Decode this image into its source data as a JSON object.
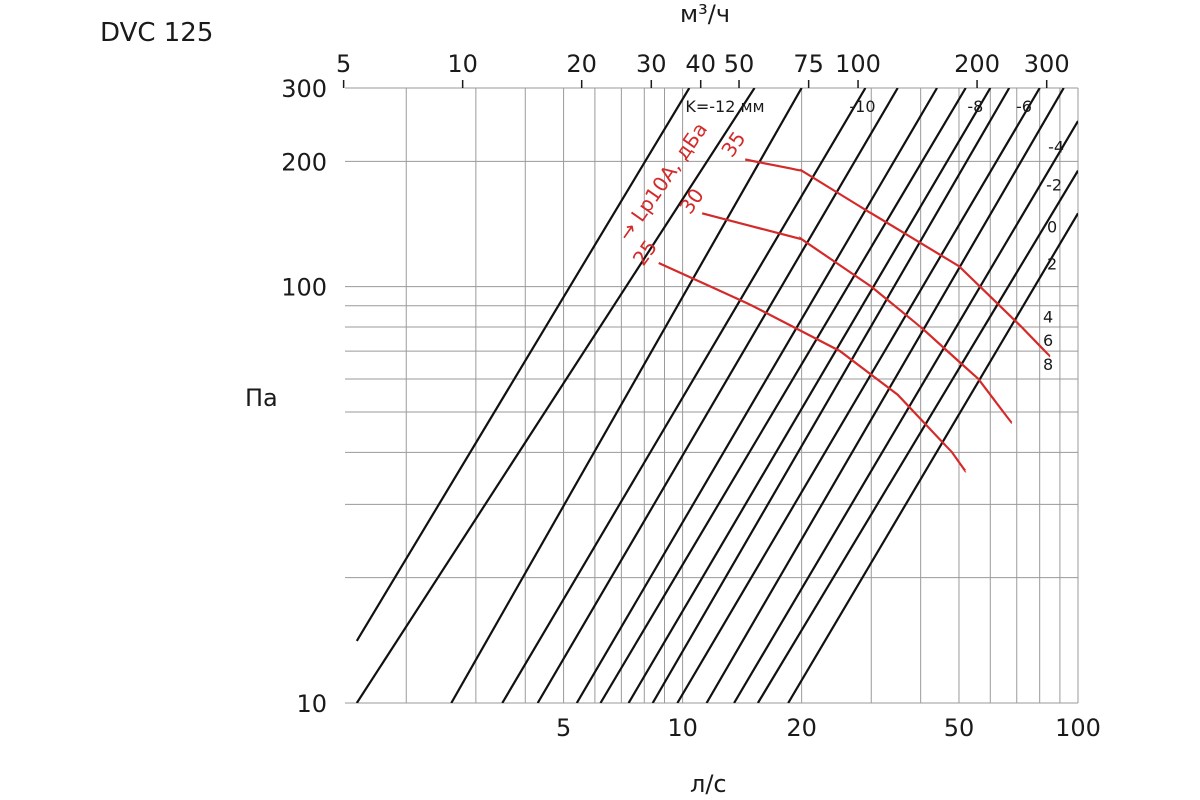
{
  "chart_data": {
    "type": "line",
    "title": "DVC 125",
    "xlabel": "л/с",
    "x2label": "м³/ч",
    "ylabel": "Па",
    "x_scale": "log",
    "y_scale": "log",
    "xlim": [
      1.4,
      100
    ],
    "ylim": [
      10,
      300
    ],
    "x_ticks": [
      5,
      10,
      20,
      50,
      100
    ],
    "x2_ticks": [
      5,
      10,
      20,
      30,
      40,
      50,
      75,
      100,
      200,
      300
    ],
    "y_ticks": [
      10,
      100,
      200,
      300
    ],
    "k_series": [
      {
        "name": "K=-12 мм",
        "points": [
          [
            1.5,
            14.1
          ],
          [
            10.4,
            300
          ]
        ]
      },
      {
        "name": "-10",
        "points": [
          [
            1.5,
            10.0
          ],
          [
            15.2,
            300
          ]
        ]
      },
      {
        "name": "",
        "points": [
          [
            2.6,
            10.0
          ],
          [
            20.0,
            300
          ]
        ]
      },
      {
        "name": "-8",
        "points": [
          [
            3.5,
            10.0
          ],
          [
            29.0,
            300
          ]
        ]
      },
      {
        "name": "-6",
        "points": [
          [
            4.3,
            10.0
          ],
          [
            35.0,
            300
          ]
        ]
      },
      {
        "name": "-4",
        "points": [
          [
            5.4,
            10.0
          ],
          [
            44.0,
            300
          ]
        ]
      },
      {
        "name": "-2",
        "points": [
          [
            6.2,
            10.0
          ],
          [
            52.0,
            300
          ]
        ]
      },
      {
        "name": "0",
        "points": [
          [
            7.3,
            10.0
          ],
          [
            60.0,
            300
          ]
        ]
      },
      {
        "name": "2",
        "points": [
          [
            8.4,
            10.0
          ],
          [
            67.0,
            300
          ]
        ]
      },
      {
        "name": "",
        "points": [
          [
            9.7,
            10.0
          ],
          [
            80.0,
            300
          ]
        ]
      },
      {
        "name": "4",
        "points": [
          [
            11.5,
            10.0
          ],
          [
            92.0,
            300
          ]
        ]
      },
      {
        "name": "6",
        "points": [
          [
            13.5,
            10.0
          ],
          [
            100.0,
            250
          ]
        ]
      },
      {
        "name": "8",
        "points": [
          [
            15.5,
            10.0
          ],
          [
            100.0,
            190
          ]
        ]
      },
      {
        "name": "",
        "points": [
          [
            18.5,
            10.0
          ],
          [
            100.0,
            150
          ]
        ]
      }
    ],
    "lp_label": "→ Lp10A, дБа",
    "lp_series": [
      {
        "name": "35",
        "points": [
          [
            14.4,
            202
          ],
          [
            20.0,
            190
          ],
          [
            30.0,
            150
          ],
          [
            50.0,
            112
          ],
          [
            72.0,
            80
          ],
          [
            85.0,
            68
          ]
        ]
      },
      {
        "name": "30",
        "points": [
          [
            11.2,
            150
          ],
          [
            20.0,
            130
          ],
          [
            30.0,
            100
          ],
          [
            40.0,
            80
          ],
          [
            56.0,
            60
          ],
          [
            68.0,
            47
          ]
        ]
      },
      {
        "name": "25",
        "points": [
          [
            8.7,
            114
          ],
          [
            15.0,
            90
          ],
          [
            25.0,
            70
          ],
          [
            35.0,
            55
          ],
          [
            48.0,
            40
          ],
          [
            52.0,
            36
          ]
        ]
      }
    ],
    "k_label_values": {
      "K=-12 мм": [
        12.8,
        263
      ],
      "-10": [
        28.5,
        263
      ],
      "-8": [
        55.0,
        263
      ],
      "-6": [
        73.0,
        263
      ],
      "-4": [
        88.0,
        210
      ],
      "-2": [
        87.0,
        170
      ],
      "0": [
        86.0,
        135
      ],
      "2": [
        86.0,
        110
      ],
      "4": [
        84.0,
        82
      ],
      "6": [
        84.0,
        72
      ],
      "8": [
        84.0,
        63
      ]
    },
    "lp_label_values": {
      "35": [
        13.9,
        215
      ],
      "30": [
        10.9,
        157
      ],
      "25": [
        8.3,
        118
      ],
      "title": [
        9.2,
        175
      ]
    }
  }
}
